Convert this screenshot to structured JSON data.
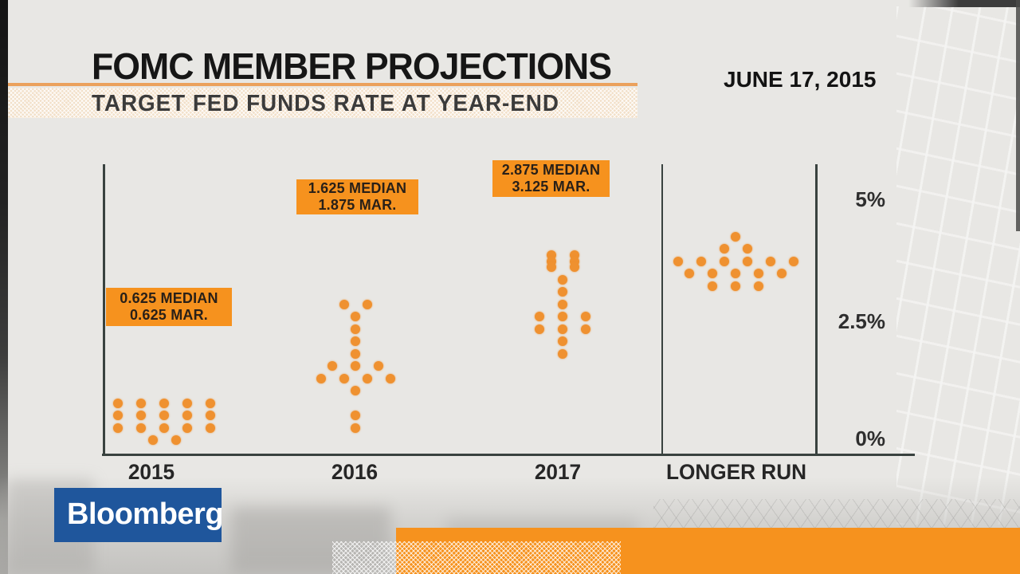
{
  "header": {
    "title": "FOMC MEMBER PROJECTIONS",
    "subtitle": "TARGET FED FUNDS RATE AT YEAR-END",
    "date": "JUNE 17, 2015"
  },
  "branding": {
    "logo_text": "Bloomberg"
  },
  "colors": {
    "accent_orange": "#F6921E",
    "dot_orange": "#EF9130",
    "bloomberg_blue": "#1F569C",
    "axis_dark": "#39423F",
    "background": "#E8E7E4"
  },
  "chart_data": {
    "type": "scatter",
    "subtype": "fomc-dot-plot",
    "title": "FOMC MEMBER PROJECTIONS",
    "subtitle": "TARGET FED FUNDS RATE AT YEAR-END",
    "as_of_date": "JUNE 17, 2015",
    "ylabel": "Target fed funds rate at year-end (%)",
    "ylim": [
      0,
      5
    ],
    "grid": false,
    "legend": false,
    "yticks": [
      {
        "label": "5%",
        "value": 5
      },
      {
        "label": "2.5%",
        "value": 2.5
      },
      {
        "label": "0%",
        "value": 0
      }
    ],
    "categories": [
      "2015",
      "2016",
      "2017",
      "LONGER RUN"
    ],
    "annotations": [
      {
        "category": "2015",
        "lines": [
          "0.625 MEDIAN",
          "0.625 MAR."
        ]
      },
      {
        "category": "2016",
        "lines": [
          "1.625 MEDIAN",
          "1.875 MAR."
        ]
      },
      {
        "category": "2017",
        "lines": [
          "2.875 MEDIAN",
          "3.125 MAR."
        ]
      }
    ],
    "series": [
      {
        "category": "2015",
        "distribution": [
          {
            "rate": 0.875,
            "count": 5
          },
          {
            "rate": 0.625,
            "count": 5
          },
          {
            "rate": 0.375,
            "count": 5
          },
          {
            "rate": 0.125,
            "count": 2
          }
        ]
      },
      {
        "category": "2016",
        "distribution": [
          {
            "rate": 2.875,
            "count": 2
          },
          {
            "rate": 2.625,
            "count": 1
          },
          {
            "rate": 2.375,
            "count": 1
          },
          {
            "rate": 2.125,
            "count": 1
          },
          {
            "rate": 1.875,
            "count": 1
          },
          {
            "rate": 1.625,
            "count": 3
          },
          {
            "rate": 1.375,
            "count": 4
          },
          {
            "rate": 1.125,
            "count": 1
          },
          {
            "rate": 0.625,
            "count": 1
          },
          {
            "rate": 0.375,
            "count": 1
          }
        ]
      },
      {
        "category": "2017",
        "distribution": [
          {
            "rate": 3.875,
            "count": 2
          },
          {
            "rate": 3.75,
            "count": 2
          },
          {
            "rate": 3.625,
            "count": 2
          },
          {
            "rate": 3.375,
            "count": 1
          },
          {
            "rate": 3.125,
            "count": 1
          },
          {
            "rate": 2.875,
            "count": 1
          },
          {
            "rate": 2.625,
            "count": 3
          },
          {
            "rate": 2.375,
            "count": 3
          },
          {
            "rate": 2.125,
            "count": 1
          },
          {
            "rate": 1.875,
            "count": 1
          }
        ]
      },
      {
        "category": "LONGER RUN",
        "distribution": [
          {
            "rate": 4.25,
            "count": 1
          },
          {
            "rate": 4.0,
            "count": 2
          },
          {
            "rate": 3.75,
            "count": 6
          },
          {
            "rate": 3.5,
            "count": 5
          },
          {
            "rate": 3.25,
            "count": 3
          }
        ]
      }
    ]
  }
}
